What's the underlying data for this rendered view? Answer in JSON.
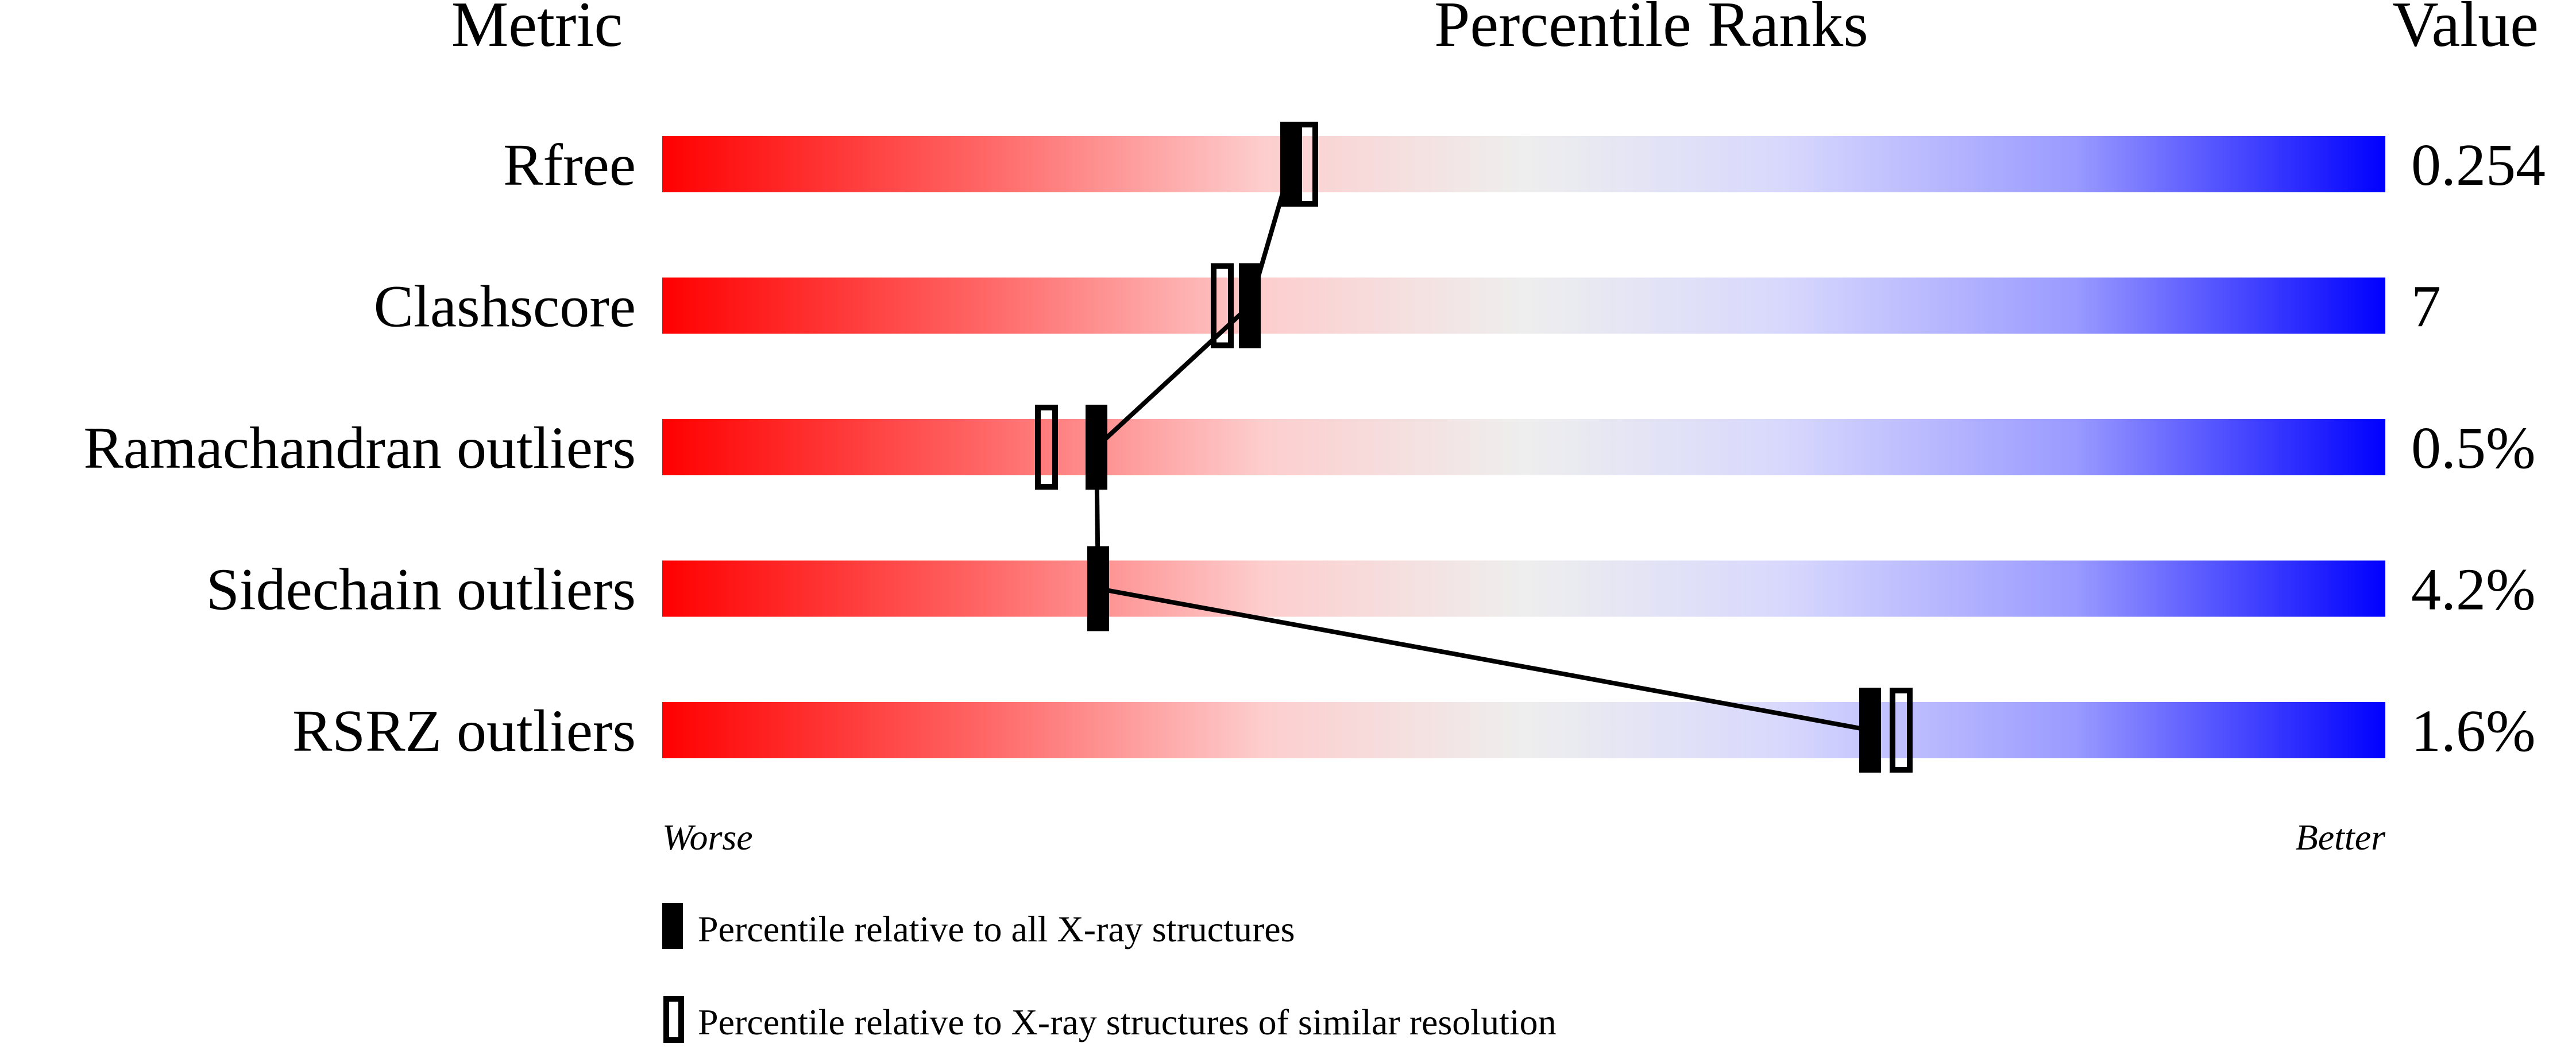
{
  "chart_data": {
    "type": "bar",
    "headers": {
      "metric": "Metric",
      "ranks": "Percentile Ranks",
      "value": "Value"
    },
    "xlim": [
      0,
      100
    ],
    "axis_labels": {
      "worse": "Worse",
      "better": "Better"
    },
    "colors": {
      "worse": "#ff0000",
      "middle": "#eeeeee",
      "better": "#0000ff"
    },
    "rows": [
      {
        "metric": "Rfree",
        "value": "0.254",
        "percentile_all": 36.5,
        "percentile_similar": 37.4
      },
      {
        "metric": "Clashscore",
        "value": "7",
        "percentile_all": 34.1,
        "percentile_similar": 32.5
      },
      {
        "metric": "Ramachandran outliers",
        "value": "0.5%",
        "percentile_all": 25.2,
        "percentile_similar": 22.3
      },
      {
        "metric": "Sidechain outliers",
        "value": "4.2%",
        "percentile_all": 25.3,
        "percentile_similar": null
      },
      {
        "metric": "RSRZ outliers",
        "value": "1.6%",
        "percentile_all": 70.1,
        "percentile_similar": 71.9
      }
    ],
    "legend": [
      {
        "marker": "filled",
        "label": "Percentile relative to all X-ray structures"
      },
      {
        "marker": "open",
        "label": "Percentile relative to X-ray structures of similar resolution"
      }
    ]
  }
}
